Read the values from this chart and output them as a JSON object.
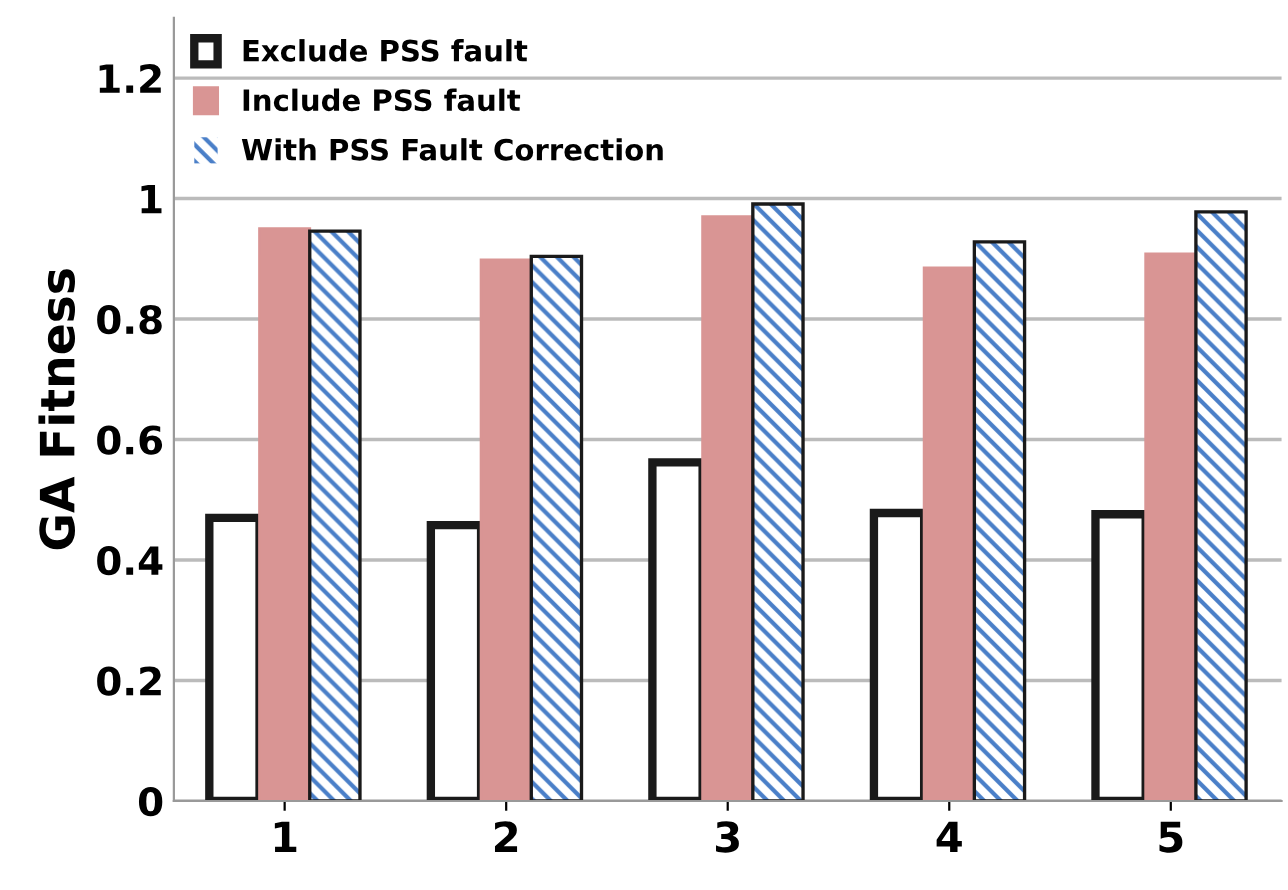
{
  "chart_data": {
    "type": "bar",
    "ylabel": "GA Fitness",
    "categories": [
      "1",
      "2",
      "3",
      "4",
      "5"
    ],
    "series": [
      {
        "name": "Exclude PSS fault",
        "color": "#1a1a1a",
        "values": [
          0.47,
          0.458,
          0.562,
          0.478,
          0.476
        ]
      },
      {
        "name": "Include PSS fault",
        "color": "#d99594",
        "values": [
          0.95,
          0.898,
          0.97,
          0.885,
          0.908
        ]
      },
      {
        "name": "With PSS Fault Correction",
        "color": "#4a7fc8",
        "values": [
          0.946,
          0.904,
          0.991,
          0.928,
          0.978
        ]
      }
    ],
    "ylim": [
      0,
      1.3
    ],
    "yticks": [
      0,
      0.2,
      0.4,
      0.6,
      0.8,
      1,
      1.2
    ],
    "grid": "y",
    "legend": "top left"
  }
}
